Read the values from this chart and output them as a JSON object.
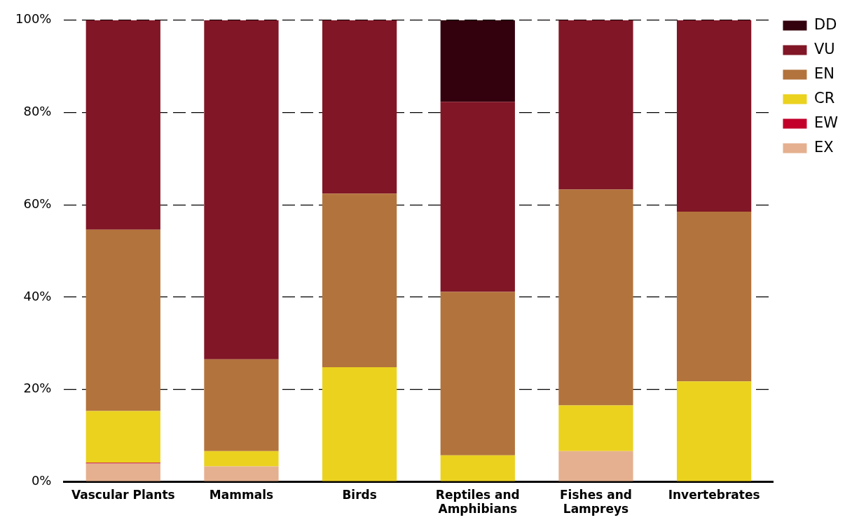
{
  "chart_data": {
    "type": "bar",
    "stacked": true,
    "categories": [
      "Vascular Plants",
      "Mammals",
      "Birds",
      "Reptiles and Amphibians",
      "Fishes and Lampreys",
      "Invertebrates"
    ],
    "series": [
      {
        "name": "EX",
        "color": "#e5b090",
        "values": [
          3.9,
          3.3,
          0,
          0,
          6.6,
          0
        ]
      },
      {
        "name": "EW",
        "color": "#c2002a",
        "values": [
          0.2,
          0,
          0,
          0,
          0,
          0
        ]
      },
      {
        "name": "CR",
        "color": "#ebd21f",
        "values": [
          11.2,
          3.3,
          24.8,
          5.7,
          9.9,
          21.7
        ]
      },
      {
        "name": "EN",
        "color": "#b3733c",
        "values": [
          39.3,
          19.9,
          37.6,
          35.4,
          46.8,
          36.8
        ]
      },
      {
        "name": "VU",
        "color": "#811626",
        "values": [
          45.4,
          73.5,
          37.6,
          41.2,
          36.7,
          41.5
        ]
      },
      {
        "name": "DD",
        "color": "#33000d",
        "values": [
          0,
          0,
          0,
          17.7,
          0,
          0
        ]
      }
    ],
    "ylim": [
      0,
      100
    ],
    "yticks": [
      {
        "value": 0,
        "label": "0%"
      },
      {
        "value": 20,
        "label": "20%"
      },
      {
        "value": 40,
        "label": "40%"
      },
      {
        "value": 60,
        "label": "60%"
      },
      {
        "value": 80,
        "label": "80%"
      },
      {
        "value": 100,
        "label": "100%"
      }
    ],
    "grid": "y",
    "legend": "top right"
  }
}
